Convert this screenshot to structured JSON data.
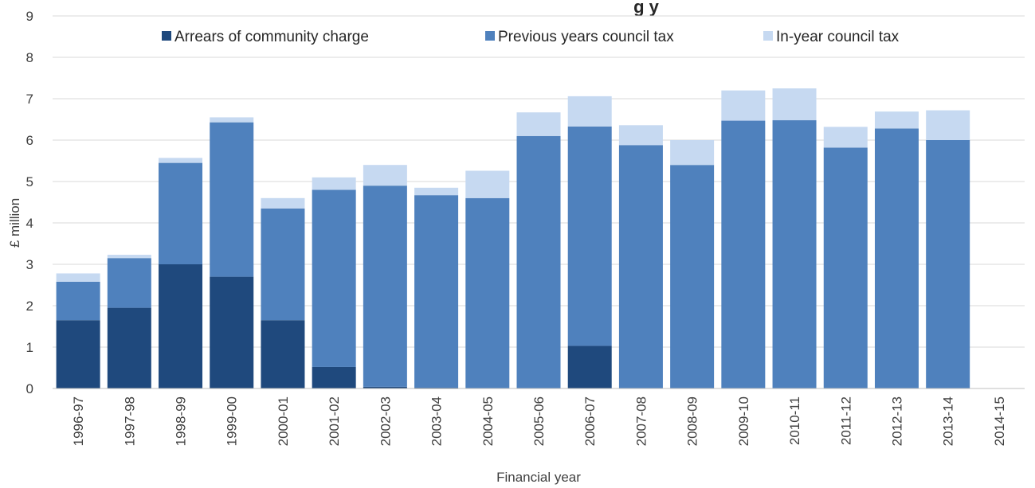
{
  "chart_data": {
    "type": "bar",
    "stacked": true,
    "title": "g y",
    "xlabel": "Financial year",
    "ylabel": "£ million",
    "ylim": [
      0,
      9
    ],
    "yticks": [
      "0",
      "1",
      "2",
      "3",
      "4",
      "5",
      "6",
      "7",
      "8",
      "9"
    ],
    "grid": true,
    "legend_position": "top",
    "categories": [
      "1996-97",
      "1997-98",
      "1998-99",
      "1999-00",
      "2000-01",
      "2001-02",
      "2002-03",
      "2003-04",
      "2004-05",
      "2005-06",
      "2006-07",
      "2007-08",
      "2008-09",
      "2009-10",
      "2010-11",
      "2011-12",
      "2012-13",
      "2013-14",
      "2014-15"
    ],
    "series": [
      {
        "name": "Arrears of community charge",
        "color": "#1F497D",
        "values": [
          1.65,
          1.95,
          3.0,
          2.7,
          1.65,
          0.52,
          0.04,
          0.02,
          0,
          0,
          1.03,
          0,
          0,
          0,
          0,
          0,
          0,
          0,
          0
        ]
      },
      {
        "name": "Previous years council tax",
        "color": "#4F81BD",
        "values": [
          0.93,
          1.2,
          2.45,
          3.73,
          2.7,
          4.28,
          4.86,
          4.65,
          4.6,
          6.1,
          5.3,
          5.88,
          5.4,
          6.47,
          6.48,
          5.82,
          6.28,
          6.0,
          0
        ]
      },
      {
        "name": "In-year council tax",
        "color": "#C6D9F1",
        "values": [
          0.2,
          0.08,
          0.12,
          0.12,
          0.25,
          0.3,
          0.5,
          0.18,
          0.66,
          0.57,
          0.73,
          0.48,
          0.6,
          0.73,
          0.77,
          0.5,
          0.41,
          0.72,
          0
        ]
      }
    ]
  }
}
